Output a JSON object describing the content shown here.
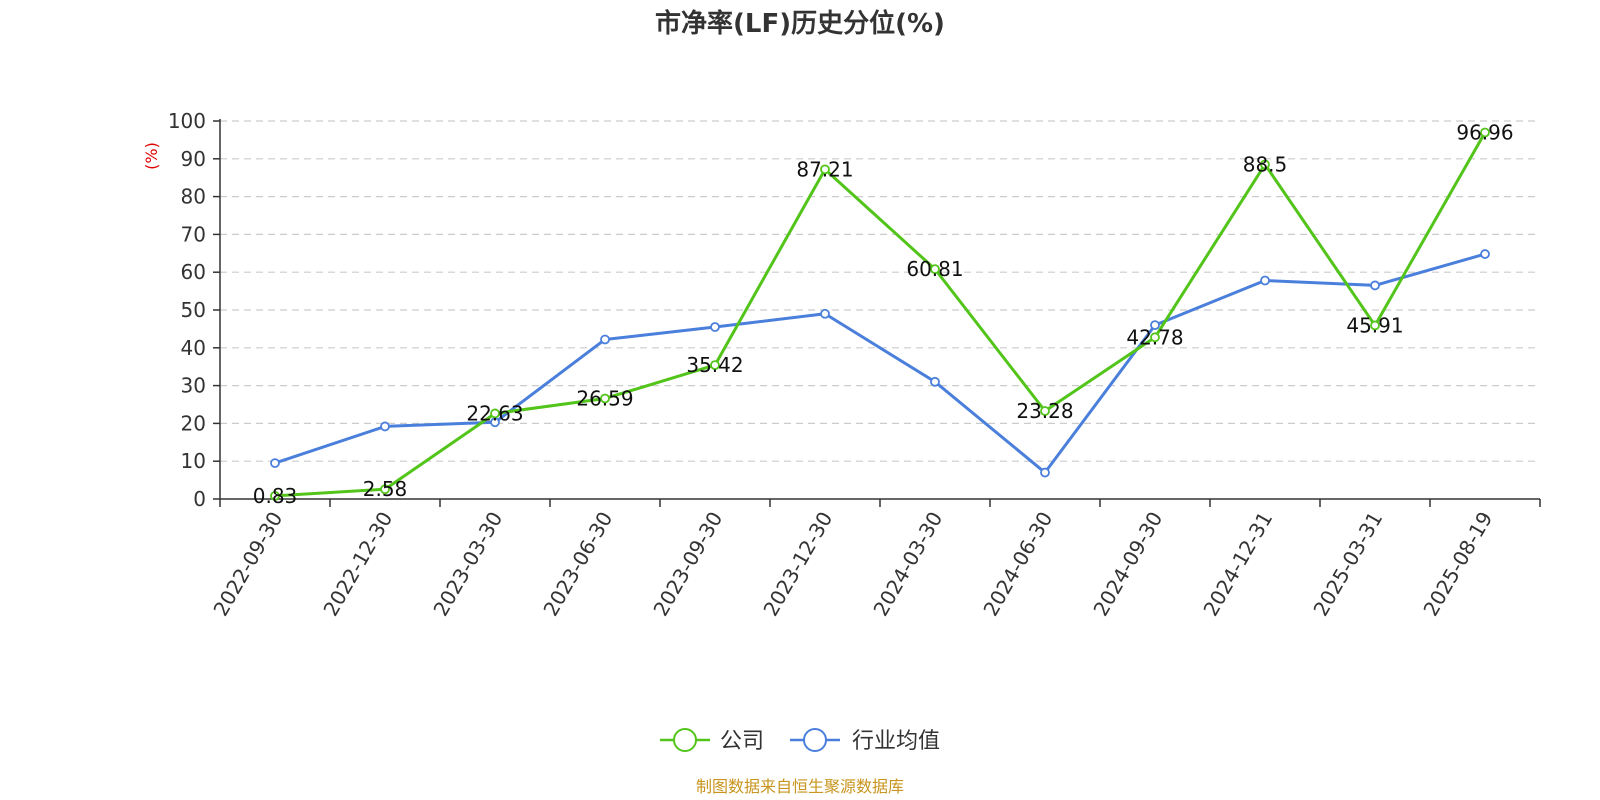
{
  "chart_data": {
    "type": "line",
    "title": "市净率(LF)历史分位(%)",
    "ylabel": "(%)",
    "xlabel": "",
    "ylim": [
      0,
      100
    ],
    "yticks": [
      0,
      10,
      20,
      30,
      40,
      50,
      60,
      70,
      80,
      90,
      100
    ],
    "grid": true,
    "legend_position": "bottom-center",
    "categories": [
      "2022-09-30",
      "2022-12-30",
      "2023-03-30",
      "2023-06-30",
      "2023-09-30",
      "2023-12-30",
      "2024-03-30",
      "2024-06-30",
      "2024-09-30",
      "2024-12-31",
      "2025-03-31",
      "2025-08-19"
    ],
    "series": [
      {
        "name": "公司",
        "color": "#52c41a",
        "values": [
          0.83,
          2.58,
          22.63,
          26.59,
          35.42,
          87.21,
          60.81,
          23.28,
          42.78,
          88.5,
          45.91,
          96.96
        ],
        "labels": [
          "0.83",
          "2.58",
          "22.63",
          "26.59",
          "35.42",
          "87.21",
          "60.81",
          "23.28",
          "42.78",
          "88.5",
          "45.91",
          "96.96"
        ]
      },
      {
        "name": "行业均值",
        "color": "#4a7fdc",
        "values": [
          9.5,
          19.2,
          20.3,
          42.2,
          45.5,
          49.0,
          31.0,
          7.0,
          46.0,
          57.8,
          56.5,
          64.8
        ]
      }
    ]
  },
  "source": "制图数据来自恒生聚源数据库",
  "colors": {
    "unit": "#e00000",
    "source": "#c8951e",
    "grid": "#cccccc",
    "axis": "#333333"
  }
}
